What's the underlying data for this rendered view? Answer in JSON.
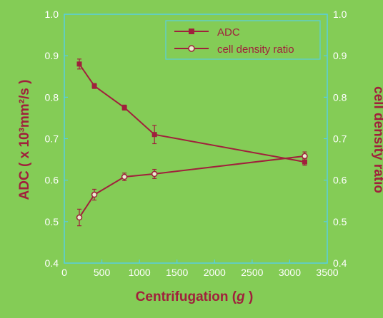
{
  "chart_data": {
    "type": "line",
    "xlabel_prefix": "Centrifugation (",
    "xlabel_italic": "g",
    "xlabel_suffix": " )",
    "ylabel_left": "ADC ( x 10³mm²/s )",
    "ylabel_right": "cell density ratio",
    "x_ticks": [
      0,
      500,
      1000,
      1500,
      2000,
      2500,
      3000,
      3500
    ],
    "y_left_ticks": [
      "0.4",
      "0.5",
      "0.6",
      "0.7",
      "0.8",
      "0.9",
      "1.0"
    ],
    "y_right_ticks": [
      "0.4",
      "0.5",
      "0.6",
      "0.7",
      "0.8",
      "0.9",
      "1.0"
    ],
    "xlim": [
      0,
      3500
    ],
    "ylim_left": [
      0.4,
      1.0
    ],
    "ylim_right": [
      0.4,
      1.0
    ],
    "grid": false,
    "legend_position": "top-right",
    "series": [
      {
        "name": "ADC",
        "axis": "left",
        "marker": "filled-square",
        "color": "#a0203c",
        "x": [
          200,
          400,
          800,
          1200,
          3200
        ],
        "y": [
          0.88,
          0.827,
          0.775,
          0.71,
          0.644
        ],
        "err": [
          0.012,
          0.006,
          0.006,
          0.022,
          0.008
        ]
      },
      {
        "name": "cell density ratio",
        "axis": "right",
        "marker": "open-circle",
        "color": "#a0203c",
        "x": [
          200,
          400,
          800,
          1200,
          3200
        ],
        "y": [
          0.51,
          0.565,
          0.608,
          0.615,
          0.658
        ],
        "err": [
          0.02,
          0.013,
          0.009,
          0.011,
          0.01
        ]
      }
    ]
  },
  "colors": {
    "background": "#84cc56",
    "axis": "#58cfe0",
    "series": "#a0203c",
    "tick_labels": "#ffffff"
  }
}
